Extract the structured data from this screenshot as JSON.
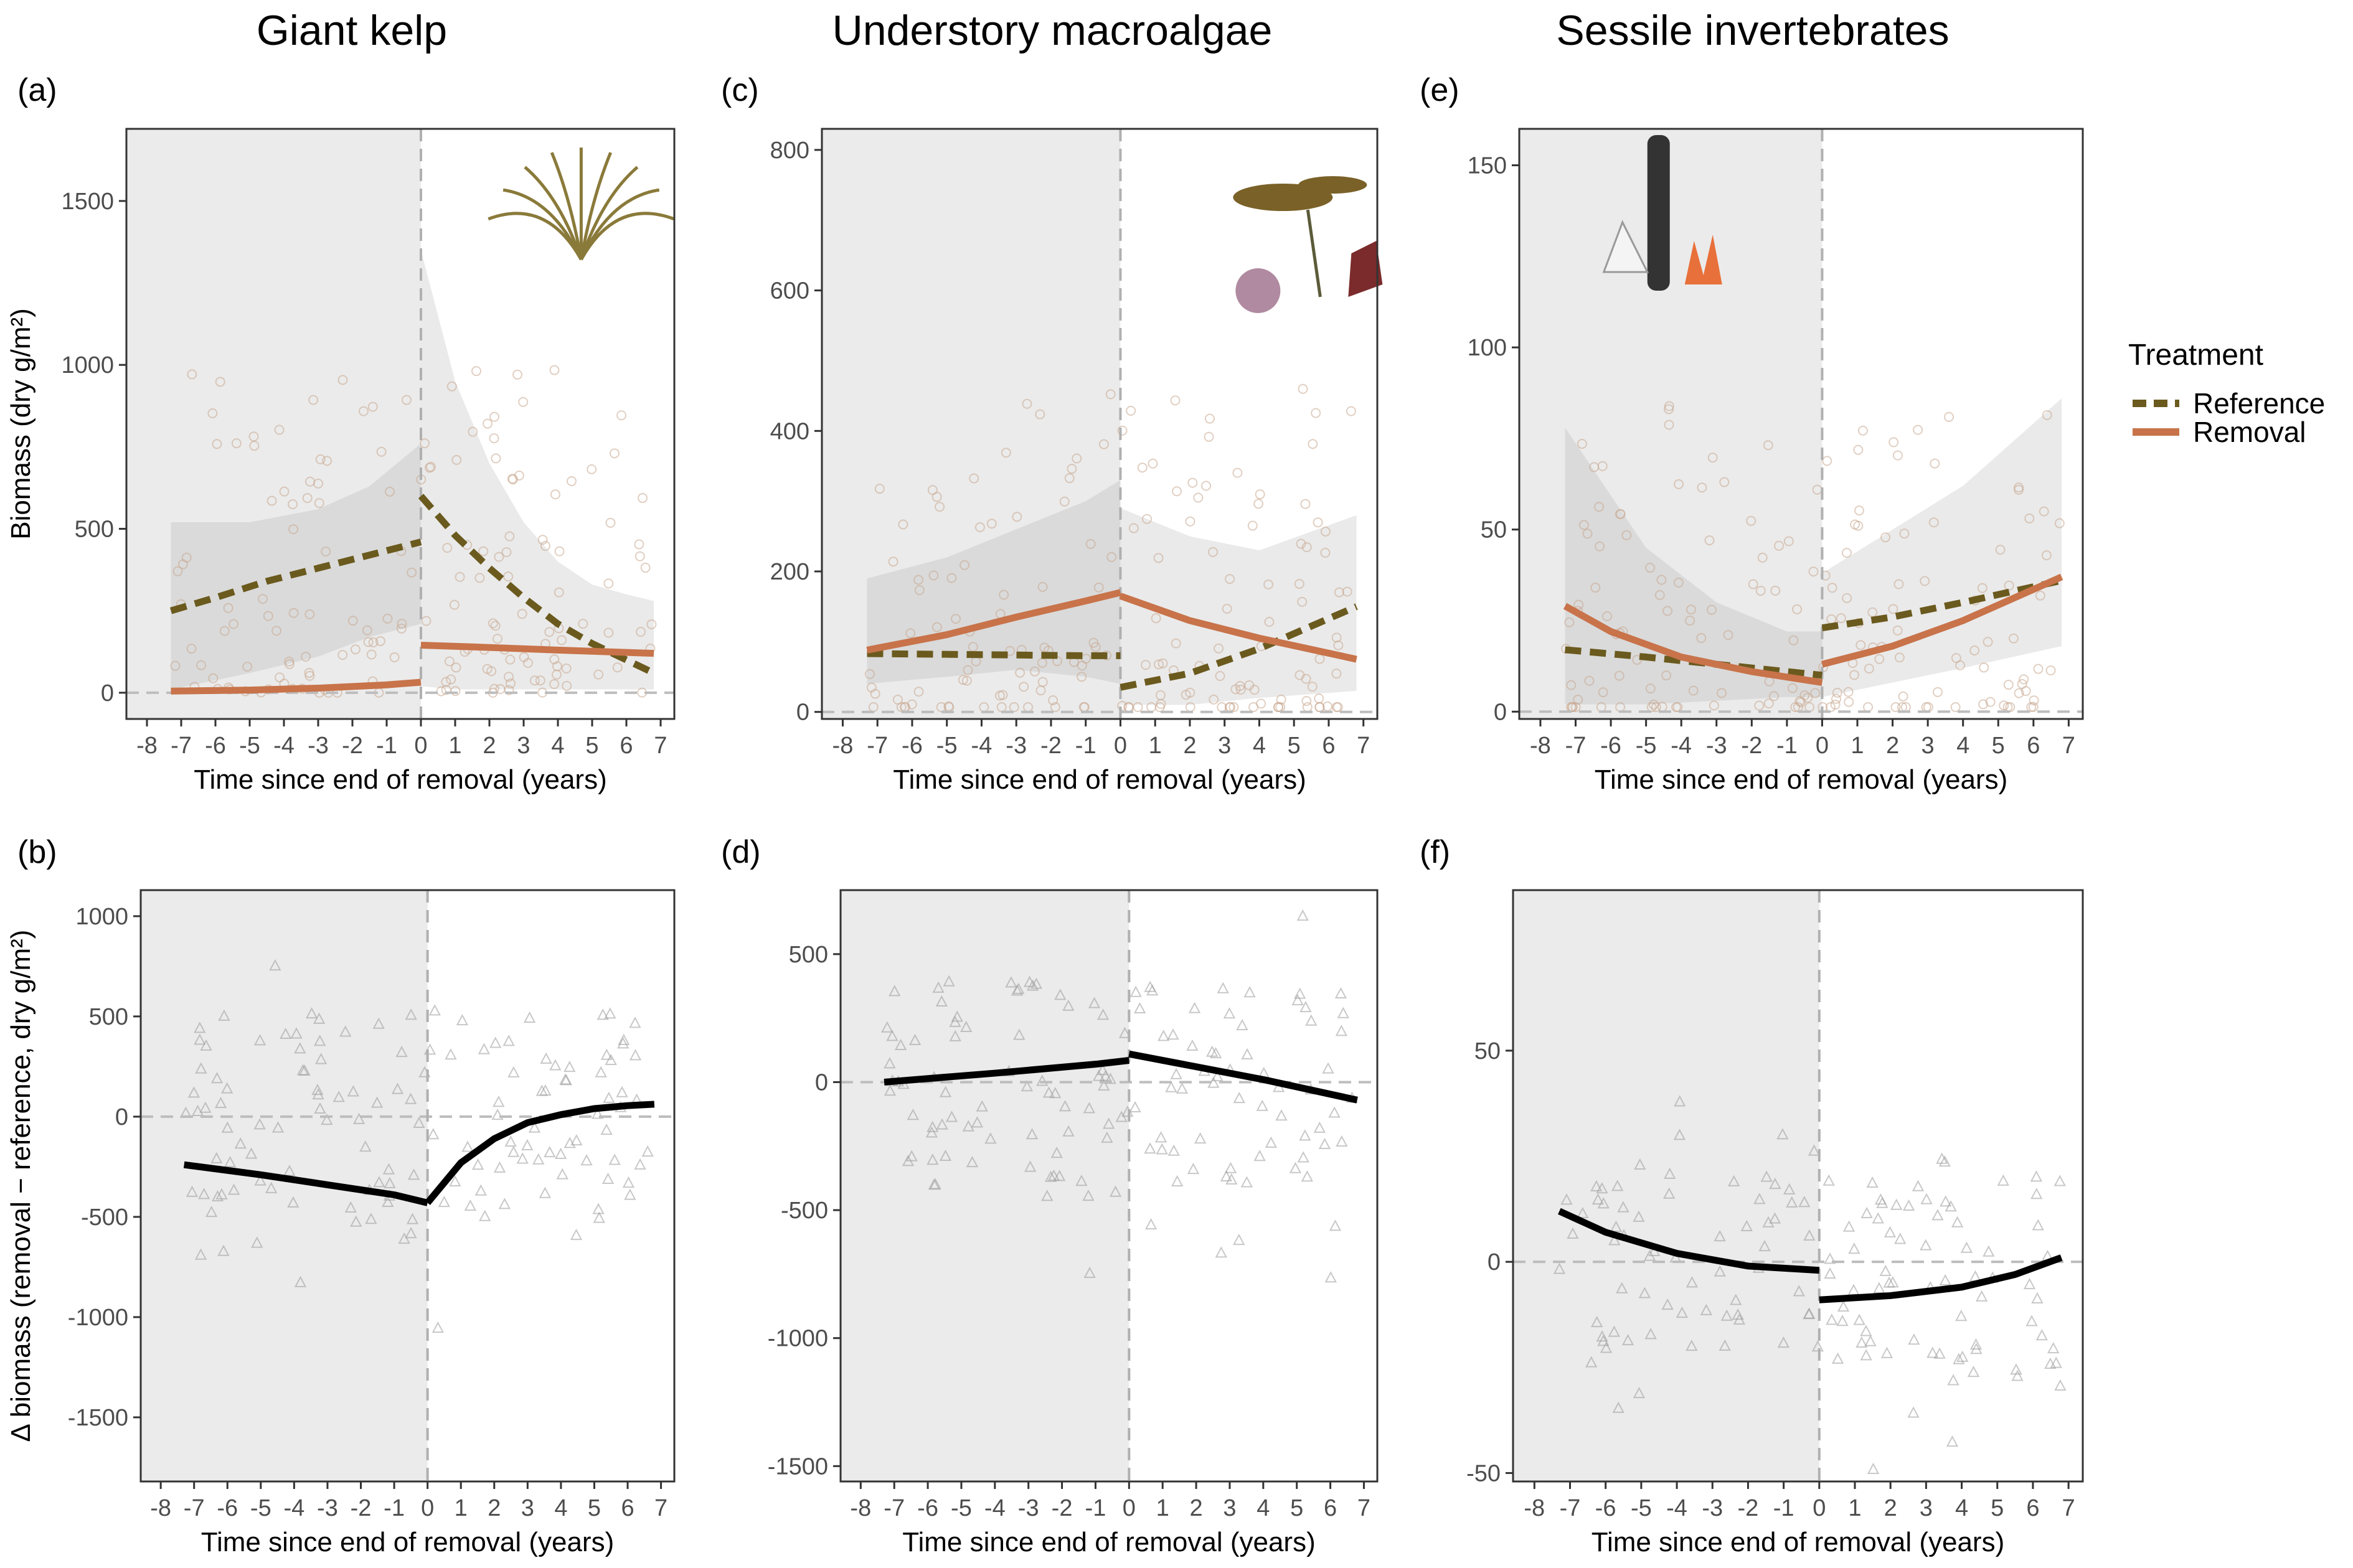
{
  "figure": {
    "column_titles": [
      "Giant kelp",
      "Understory macroalgae",
      "Sessile invertebrates"
    ],
    "x_axis_title": "Time since end of removal (years)",
    "x_ticks": [
      -8,
      -7,
      -6,
      -5,
      -4,
      -3,
      -2,
      -1,
      0,
      1,
      2,
      3,
      4,
      5,
      6,
      7
    ],
    "legend": {
      "title": "Treatment",
      "items": [
        {
          "label": "Reference",
          "color": "#6b5a1e",
          "style": "dashed"
        },
        {
          "label": "Removal",
          "color": "#c8734a",
          "style": "solid"
        }
      ]
    },
    "colors": {
      "reference": "#6b5a1e",
      "removal": "#c8734a",
      "before_shade": "#ebebeb",
      "ribbon": "#a0a0a0",
      "delta_line": "#000000",
      "points": "#c8a890",
      "delta_points": "#9a9a9a"
    }
  },
  "chart_data": [
    {
      "panel": "(a)",
      "type": "line",
      "group": "Giant kelp",
      "ylabel": "Biomass (dry g/m²)",
      "xlim": [
        -8.6,
        7.4
      ],
      "ylim": [
        -80,
        1720
      ],
      "yticks": [
        0,
        500,
        1000,
        1500
      ],
      "series": [
        {
          "name": "Reference",
          "segments": [
            {
              "x": [
                -7.3,
                -6,
                -4.5,
                -3,
                -1.5,
                0
              ],
              "y": [
                250,
                290,
                340,
                380,
                420,
                460
              ]
            },
            {
              "x": [
                0,
                1,
                2,
                3,
                4,
                5,
                6,
                6.8
              ],
              "y": [
                600,
                480,
                380,
                290,
                210,
                150,
                100,
                60
              ]
            }
          ]
        },
        {
          "name": "Removal",
          "segments": [
            {
              "x": [
                -7.3,
                -5,
                -3,
                -1,
                0
              ],
              "y": [
                5,
                8,
                14,
                24,
                32
              ]
            },
            {
              "x": [
                0,
                2,
                4,
                6.8
              ],
              "y": [
                145,
                138,
                130,
                120
              ]
            }
          ]
        }
      ],
      "ribbons": [
        {
          "x": [
            -7.3,
            -5,
            -3,
            -1.5,
            0
          ],
          "lo": [
            10,
            60,
            110,
            170,
            210
          ],
          "hi": [
            520,
            520,
            560,
            630,
            760
          ]
        },
        {
          "x": [
            0,
            1,
            2,
            3,
            4,
            5,
            6,
            6.8
          ],
          "lo": [
            20,
            10,
            10,
            10,
            10,
            10,
            10,
            10
          ],
          "hi": [
            1350,
            950,
            700,
            520,
            400,
            330,
            300,
            280
          ]
        }
      ],
      "annotations": [
        {
          "x": 4,
          "y": 40,
          "text": ""
        }
      ]
    },
    {
      "panel": "(c)",
      "type": "line",
      "group": "Understory macroalgae",
      "ylabel": "",
      "xlim": [
        -8.6,
        7.4
      ],
      "ylim": [
        -10,
        830
      ],
      "yticks": [
        0,
        200,
        400,
        600,
        800
      ],
      "series": [
        {
          "name": "Reference",
          "segments": [
            {
              "x": [
                -7.3,
                -5,
                -3,
                -1,
                0
              ],
              "y": [
                83,
                82,
                81,
                80,
                80
              ]
            },
            {
              "x": [
                0,
                2,
                4,
                6.8
              ],
              "y": [
                35,
                55,
                90,
                150
              ]
            }
          ]
        },
        {
          "name": "Removal",
          "segments": [
            {
              "x": [
                -7.3,
                -5,
                -3,
                -1,
                0
              ],
              "y": [
                88,
                110,
                135,
                158,
                170
              ]
            },
            {
              "x": [
                0,
                2,
                4,
                6.8
              ],
              "y": [
                165,
                130,
                105,
                75
              ]
            }
          ]
        }
      ],
      "ribbons": [
        {
          "x": [
            -7.3,
            -5,
            -3,
            -1,
            0
          ],
          "lo": [
            40,
            50,
            60,
            50,
            40
          ],
          "hi": [
            190,
            220,
            260,
            300,
            330
          ]
        },
        {
          "x": [
            0,
            2,
            4,
            6.8
          ],
          "lo": [
            10,
            10,
            20,
            30
          ],
          "hi": [
            290,
            250,
            230,
            280
          ]
        }
      ]
    },
    {
      "panel": "(e)",
      "type": "line",
      "group": "Sessile invertebrates",
      "ylabel": "",
      "xlim": [
        -8.6,
        7.4
      ],
      "ylim": [
        -2,
        160
      ],
      "yticks": [
        0,
        50,
        100,
        150
      ],
      "series": [
        {
          "name": "Reference",
          "segments": [
            {
              "x": [
                -7.3,
                -5,
                -3,
                -1,
                0
              ],
              "y": [
                17,
                15,
                13,
                11,
                10
              ]
            },
            {
              "x": [
                0,
                2,
                4,
                6.8
              ],
              "y": [
                23,
                26,
                30,
                36
              ]
            }
          ]
        },
        {
          "name": "Removal",
          "segments": [
            {
              "x": [
                -7.3,
                -6,
                -4,
                -2,
                0
              ],
              "y": [
                29,
                22,
                15,
                11,
                8
              ]
            },
            {
              "x": [
                0,
                2,
                4,
                6.8
              ],
              "y": [
                13,
                18,
                25,
                37
              ]
            }
          ]
        }
      ],
      "ribbons": [
        {
          "x": [
            -7.3,
            -5,
            -3,
            -1,
            0
          ],
          "lo": [
            2,
            2,
            3,
            4,
            4
          ],
          "hi": [
            78,
            45,
            30,
            22,
            22
          ]
        },
        {
          "x": [
            0,
            2,
            4,
            6.8
          ],
          "lo": [
            4,
            8,
            12,
            18
          ],
          "hi": [
            38,
            50,
            62,
            86
          ]
        }
      ]
    },
    {
      "panel": "(b)",
      "type": "line",
      "group": "Giant kelp",
      "ylabel": "Δ biomass (removal − reference, dry g/m²)",
      "xlim": [
        -8.6,
        7.4
      ],
      "ylim": [
        -1820,
        1130
      ],
      "yticks": [
        -1500,
        -1000,
        -500,
        0,
        500,
        1000
      ],
      "series": [
        {
          "name": "Δ biomass",
          "segments": [
            {
              "x": [
                -7.3,
                -5,
                -3,
                -1,
                0
              ],
              "y": [
                -240,
                -290,
                -340,
                -390,
                -430
              ]
            },
            {
              "x": [
                0,
                1,
                2,
                3,
                4,
                5,
                6,
                6.8
              ],
              "y": [
                -430,
                -230,
                -110,
                -30,
                10,
                40,
                55,
                62
              ]
            }
          ]
        }
      ]
    },
    {
      "panel": "(d)",
      "type": "line",
      "group": "Understory macroalgae",
      "ylabel": "",
      "xlim": [
        -8.6,
        7.4
      ],
      "ylim": [
        -1560,
        750
      ],
      "yticks": [
        -1500,
        -1000,
        -500,
        0,
        500
      ],
      "series": [
        {
          "name": "Δ biomass",
          "segments": [
            {
              "x": [
                -7.3,
                -4,
                -1,
                0
              ],
              "y": [
                0,
                35,
                70,
                85
              ]
            },
            {
              "x": [
                0,
                2,
                4,
                6.8
              ],
              "y": [
                110,
                60,
                10,
                -70
              ]
            }
          ]
        }
      ]
    },
    {
      "panel": "(f)",
      "type": "line",
      "group": "Sessile invertebrates",
      "ylabel": "",
      "xlim": [
        -8.6,
        7.4
      ],
      "ylim": [
        -52,
        88
      ],
      "yticks": [
        -50,
        0,
        50
      ],
      "series": [
        {
          "name": "Δ biomass",
          "segments": [
            {
              "x": [
                -7.3,
                -6,
                -4,
                -2,
                0
              ],
              "y": [
                12,
                7,
                2,
                -1,
                -2
              ]
            },
            {
              "x": [
                0,
                2,
                4,
                5.5,
                6.8
              ],
              "y": [
                -9,
                -8,
                -6,
                -3,
                1
              ]
            }
          ]
        }
      ]
    }
  ]
}
